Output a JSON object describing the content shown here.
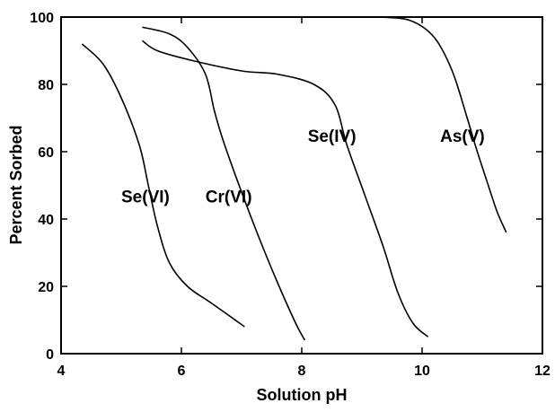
{
  "chart_data": {
    "type": "line",
    "title": "",
    "xlabel": "Solution pH",
    "ylabel": "Percent Sorbed",
    "xlim": [
      4,
      12
    ],
    "ylim": [
      0,
      100
    ],
    "xticks": [
      4,
      6,
      8,
      10,
      12
    ],
    "yticks": [
      0,
      20,
      40,
      60,
      80,
      100
    ],
    "grid": false,
    "legend": "none",
    "series": [
      {
        "name": "Se(VI)",
        "label_at": [
          5.0,
          45
        ],
        "points": [
          [
            4.35,
            92
          ],
          [
            4.7,
            86
          ],
          [
            5.0,
            76
          ],
          [
            5.3,
            62
          ],
          [
            5.45,
            50
          ],
          [
            5.6,
            38
          ],
          [
            5.8,
            27
          ],
          [
            6.1,
            20
          ],
          [
            6.5,
            15
          ],
          [
            7.05,
            8
          ]
        ]
      },
      {
        "name": "Cr(VI)",
        "label_at": [
          6.4,
          45
        ],
        "points": [
          [
            5.35,
            97
          ],
          [
            5.8,
            95
          ],
          [
            6.1,
            91
          ],
          [
            6.4,
            83
          ],
          [
            6.55,
            72
          ],
          [
            6.7,
            63
          ],
          [
            7.0,
            48
          ],
          [
            7.3,
            34
          ],
          [
            7.6,
            21
          ],
          [
            7.9,
            9
          ],
          [
            8.05,
            4
          ]
        ]
      },
      {
        "name": "Se(IV)",
        "label_at": [
          8.1,
          63
        ],
        "points": [
          [
            5.35,
            93
          ],
          [
            5.6,
            90
          ],
          [
            6.2,
            87
          ],
          [
            7.0,
            84
          ],
          [
            7.6,
            83
          ],
          [
            8.2,
            80
          ],
          [
            8.55,
            74
          ],
          [
            8.75,
            62
          ],
          [
            9.05,
            47
          ],
          [
            9.35,
            32
          ],
          [
            9.6,
            18
          ],
          [
            9.85,
            9
          ],
          [
            10.1,
            5
          ]
        ]
      },
      {
        "name": "As(V)",
        "label_at": [
          10.3,
          63
        ],
        "points": [
          [
            9.3,
            100
          ],
          [
            9.8,
            99
          ],
          [
            10.2,
            94
          ],
          [
            10.5,
            84
          ],
          [
            10.75,
            70
          ],
          [
            10.9,
            61
          ],
          [
            11.1,
            50
          ],
          [
            11.25,
            42
          ],
          [
            11.4,
            36
          ]
        ]
      }
    ]
  }
}
